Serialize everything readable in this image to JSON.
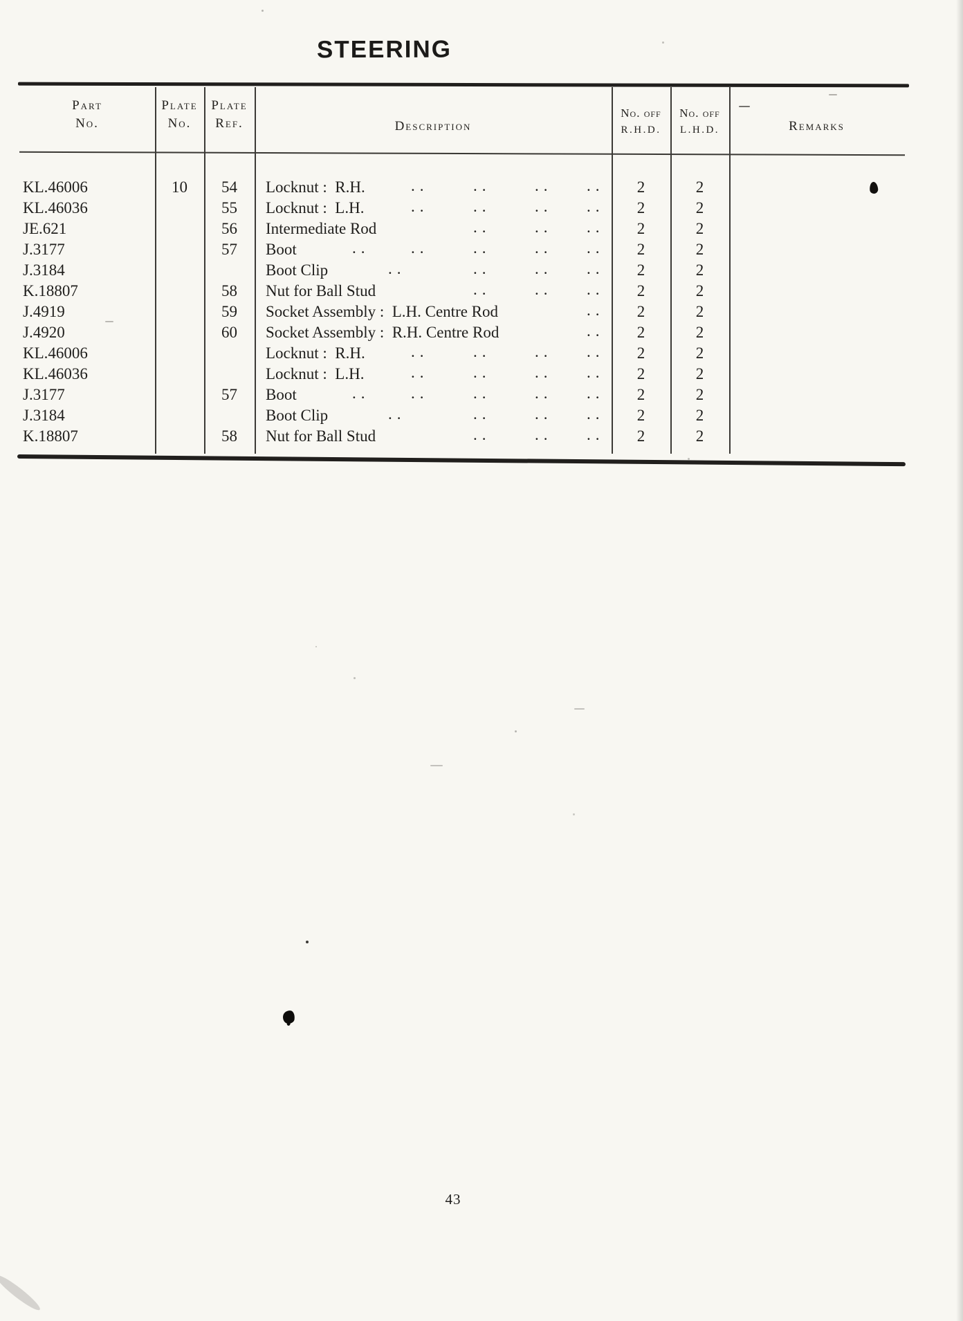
{
  "page": {
    "title": "STEERING",
    "page_number": "43"
  },
  "colors": {
    "paper": "#f8f7f2",
    "ink": "#1f1e1c",
    "rule": "#211f1d"
  },
  "table": {
    "headers": {
      "part_no": [
        "Part",
        "No."
      ],
      "plate_no": [
        "Plate",
        "No."
      ],
      "plate_ref": [
        "Plate",
        "Ref."
      ],
      "description": "Description",
      "no_off_rhd": [
        "No. off",
        "R.H.D."
      ],
      "no_off_lhd": [
        "No. off",
        "L.H.D."
      ],
      "remarks": "Remarks"
    },
    "rows": [
      {
        "part": "KL.46006",
        "plate_no": "10",
        "plate_ref": "54",
        "description": "Locknut :  R.H.",
        "dots": [
          226,
          316,
          405,
          480
        ],
        "rhd": "2",
        "lhd": "2",
        "remarks": ""
      },
      {
        "part": "KL.46036",
        "plate_no": "",
        "plate_ref": "55",
        "description": "Locknut :  L.H.",
        "dots": [
          226,
          316,
          405,
          480
        ],
        "rhd": "2",
        "lhd": "2",
        "remarks": ""
      },
      {
        "part": "JE.621",
        "plate_no": "",
        "plate_ref": "56",
        "description": "Intermediate Rod",
        "dots": [
          316,
          405,
          480
        ],
        "rhd": "2",
        "lhd": "2",
        "remarks": ""
      },
      {
        "part": "J.3177",
        "plate_no": "",
        "plate_ref": "57",
        "description": "Boot",
        "dots": [
          141,
          226,
          316,
          405,
          480
        ],
        "rhd": "2",
        "lhd": "2",
        "remarks": ""
      },
      {
        "part": "J.3184",
        "plate_no": "",
        "plate_ref": "",
        "description": "Boot Clip",
        "dots": [
          193,
          316,
          405,
          480
        ],
        "rhd": "2",
        "lhd": "2",
        "remarks": ""
      },
      {
        "part": "K.18807",
        "plate_no": "",
        "plate_ref": "58",
        "description": "Nut for Ball Stud",
        "dots": [
          316,
          405,
          480
        ],
        "rhd": "2",
        "lhd": "2",
        "remarks": ""
      },
      {
        "part": "J.4919",
        "plate_no": "",
        "plate_ref": "59",
        "description": "Socket Assembly :  L.H. Centre Rod",
        "dots": [
          480
        ],
        "rhd": "2",
        "lhd": "2",
        "remarks": ""
      },
      {
        "part": "J.4920",
        "plate_no": "",
        "plate_ref": "60",
        "description": "Socket Assembly :  R.H. Centre Rod",
        "dots": [
          480
        ],
        "rhd": "2",
        "lhd": "2",
        "remarks": ""
      },
      {
        "part": "KL.46006",
        "plate_no": "",
        "plate_ref": "",
        "description": "Locknut :  R.H.",
        "dots": [
          226,
          316,
          405,
          480
        ],
        "rhd": "2",
        "lhd": "2",
        "remarks": ""
      },
      {
        "part": "KL.46036",
        "plate_no": "",
        "plate_ref": "",
        "description": "Locknut :  L.H.",
        "dots": [
          226,
          316,
          405,
          480
        ],
        "rhd": "2",
        "lhd": "2",
        "remarks": ""
      },
      {
        "part": "J.3177",
        "plate_no": "",
        "plate_ref": "57",
        "description": "Boot",
        "dots": [
          141,
          226,
          316,
          405,
          480
        ],
        "rhd": "2",
        "lhd": "2",
        "remarks": ""
      },
      {
        "part": "J.3184",
        "plate_no": "",
        "plate_ref": "",
        "description": "Boot Clip",
        "dots": [
          193,
          316,
          405,
          480
        ],
        "rhd": "2",
        "lhd": "2",
        "remarks": ""
      },
      {
        "part": "K.18807",
        "plate_no": "",
        "plate_ref": "58",
        "description": "Nut for Ball Stud",
        "dots": [
          316,
          405,
          480
        ],
        "rhd": "2",
        "lhd": "2",
        "remarks": ""
      }
    ]
  }
}
